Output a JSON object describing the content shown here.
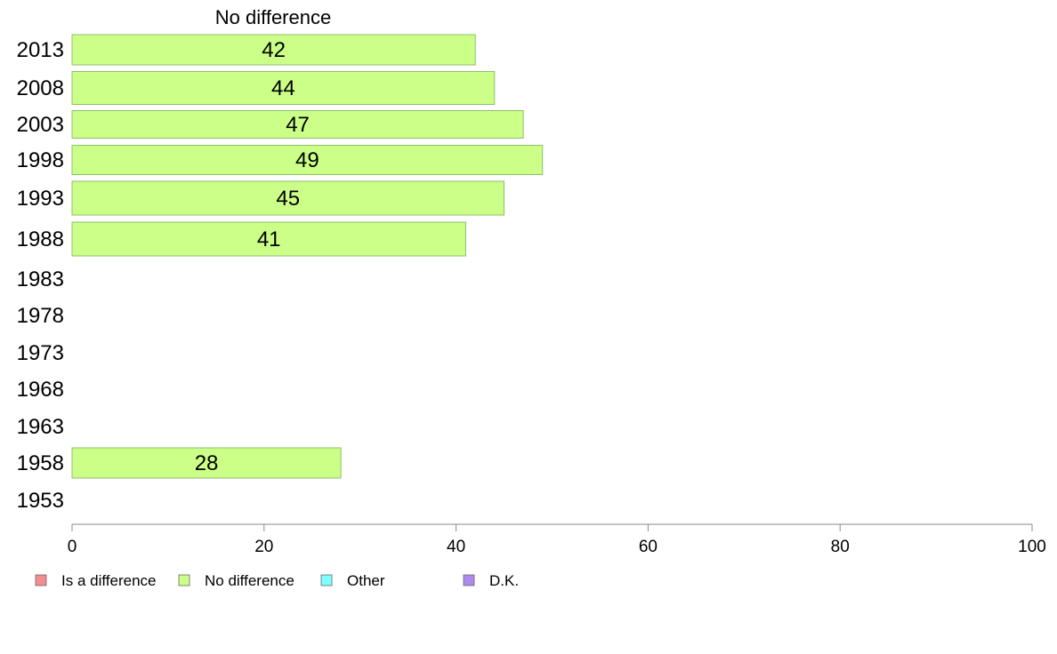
{
  "chart_data": {
    "type": "bar",
    "orientation": "horizontal",
    "header": "No difference",
    "categories": [
      "2013",
      "2008",
      "2003",
      "1998",
      "1993",
      "1988",
      "1983",
      "1978",
      "1973",
      "1968",
      "1963",
      "1958",
      "1953"
    ],
    "series": [
      {
        "name": "No difference",
        "values": [
          42,
          44,
          47,
          49,
          45,
          41,
          null,
          null,
          null,
          null,
          null,
          28,
          null
        ]
      }
    ],
    "xlim": [
      0,
      100
    ],
    "xticks": [
      "0",
      "20",
      "40",
      "60",
      "80",
      "100"
    ],
    "legend": [
      {
        "label": "Is a difference",
        "color": "#f28e8e"
      },
      {
        "label": "No difference",
        "color": "#ccff88"
      },
      {
        "label": "Other",
        "color": "#80ffff"
      },
      {
        "label": "D.K.",
        "color": "#b088f0"
      }
    ],
    "legend_position": "bottom-left",
    "bar_color": "#ccff88",
    "bar_stroke": "#8fbf6a",
    "grid": false
  }
}
